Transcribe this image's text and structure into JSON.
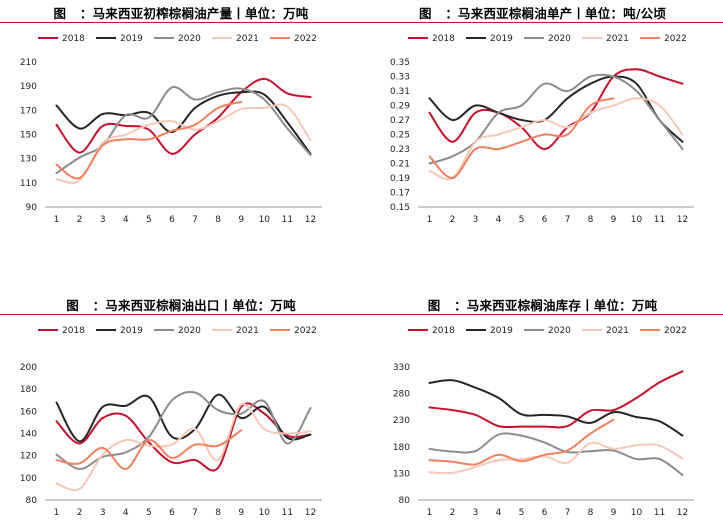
{
  "chart_data": [
    {
      "type": "line",
      "title": "图   ：马来西亚初榨棕榈油产量丨单位：万吨",
      "categories": [
        "1",
        "2",
        "3",
        "4",
        "5",
        "6",
        "7",
        "8",
        "9",
        "10",
        "11",
        "12"
      ],
      "ylim": [
        90,
        210
      ],
      "yticks": [
        90,
        110,
        130,
        150,
        170,
        190,
        210
      ],
      "grid": false,
      "legend_position": "top",
      "series": [
        {
          "name": "2018",
          "color": "#c8102e",
          "values": [
            158,
            135,
            157,
            157,
            154,
            134,
            150,
            164,
            185,
            196,
            184,
            181
          ]
        },
        {
          "name": "2019",
          "color": "#262626",
          "values": [
            174,
            155,
            167,
            166,
            168,
            152,
            172,
            182,
            185,
            183,
            160,
            134
          ]
        },
        {
          "name": "2020",
          "color": "#8c8c8c",
          "values": [
            118,
            131,
            141,
            166,
            164,
            189,
            179,
            185,
            188,
            179,
            155,
            133
          ]
        },
        {
          "name": "2021",
          "color": "#f7c8b7",
          "values": [
            113,
            112,
            143,
            150,
            158,
            161,
            154,
            161,
            171,
            172,
            173,
            145
          ]
        },
        {
          "name": "2022",
          "color": "#f0805e",
          "values": [
            125,
            114,
            141,
            146,
            146,
            153,
            158,
            172,
            177,
            null,
            null,
            null
          ]
        }
      ]
    },
    {
      "type": "line",
      "title": "图   ：马来西亚棕榈油单产丨单位：吨/公顷",
      "categories": [
        "1",
        "2",
        "3",
        "4",
        "5",
        "6",
        "7",
        "8",
        "9",
        "10",
        "11",
        "12"
      ],
      "ylim": [
        0.15,
        0.35
      ],
      "yticks": [
        0.15,
        0.17,
        0.19,
        0.21,
        0.23,
        0.25,
        0.27,
        0.29,
        0.31,
        0.33,
        0.35
      ],
      "grid": false,
      "legend_position": "top",
      "series": [
        {
          "name": "2018",
          "color": "#c8102e",
          "values": [
            0.28,
            0.24,
            0.28,
            0.28,
            0.26,
            0.23,
            0.26,
            0.28,
            0.33,
            0.34,
            0.33,
            0.32
          ]
        },
        {
          "name": "2019",
          "color": "#262626",
          "values": [
            0.3,
            0.27,
            0.29,
            0.28,
            0.27,
            0.27,
            0.3,
            0.32,
            0.33,
            0.32,
            0.27,
            0.24
          ]
        },
        {
          "name": "2020",
          "color": "#8c8c8c",
          "values": [
            0.21,
            0.22,
            0.24,
            0.28,
            0.29,
            0.32,
            0.31,
            0.33,
            0.33,
            0.31,
            0.27,
            0.23
          ]
        },
        {
          "name": "2021",
          "color": "#f7c8b7",
          "values": [
            0.2,
            0.19,
            0.24,
            0.25,
            0.26,
            0.27,
            0.26,
            0.28,
            0.29,
            0.3,
            0.29,
            0.25
          ]
        },
        {
          "name": "2022",
          "color": "#f0805e",
          "values": [
            0.22,
            0.19,
            0.23,
            0.23,
            0.24,
            0.25,
            0.25,
            0.29,
            0.3,
            null,
            null,
            null
          ]
        }
      ]
    },
    {
      "type": "line",
      "title": "图   ：马来西亚棕榈油出口丨单位：万吨",
      "categories": [
        "1",
        "2",
        "3",
        "4",
        "5",
        "6",
        "7",
        "8",
        "9",
        "10",
        "11",
        "12"
      ],
      "ylim": [
        80,
        200
      ],
      "yticks": [
        80,
        100,
        120,
        140,
        160,
        180,
        200
      ],
      "grid": false,
      "legend_position": "top",
      "series": [
        {
          "name": "2018",
          "color": "#c8102e",
          "values": [
            151,
            131,
            154,
            156,
            132,
            114,
            116,
            109,
            164,
            158,
            138,
            139
          ]
        },
        {
          "name": "2019",
          "color": "#262626",
          "values": [
            168,
            133,
            164,
            165,
            173,
            137,
            144,
            175,
            154,
            164,
            136,
            139
          ]
        },
        {
          "name": "2020",
          "color": "#8c8c8c",
          "values": [
            121,
            108,
            119,
            123,
            137,
            170,
            177,
            161,
            158,
            169,
            131,
            163
          ]
        },
        {
          "name": "2021",
          "color": "#f7c8b7",
          "values": [
            95,
            90,
            121,
            134,
            129,
            130,
            144,
            116,
            166,
            144,
            140,
            142
          ]
        },
        {
          "name": "2022",
          "color": "#f0805e",
          "values": [
            116,
            113,
            127,
            108,
            134,
            118,
            130,
            129,
            143,
            null,
            null,
            null
          ]
        }
      ]
    },
    {
      "type": "line",
      "title": "图   ：马来西亚棕榈油库存丨单位：万吨",
      "categories": [
        "1",
        "2",
        "3",
        "4",
        "5",
        "6",
        "7",
        "8",
        "9",
        "10",
        "11",
        "12"
      ],
      "ylim": [
        80,
        330
      ],
      "yticks": [
        80,
        130,
        180,
        230,
        280,
        330
      ],
      "grid": false,
      "legend_position": "top",
      "series": [
        {
          "name": "2018",
          "color": "#c8102e",
          "values": [
            254,
            249,
            240,
            219,
            218,
            218,
            219,
            248,
            249,
            272,
            301,
            322
          ]
        },
        {
          "name": "2019",
          "color": "#262626",
          "values": [
            300,
            305,
            291,
            272,
            241,
            240,
            237,
            225,
            245,
            236,
            228,
            201
          ]
        },
        {
          "name": "2020",
          "color": "#8c8c8c",
          "values": [
            176,
            171,
            172,
            203,
            201,
            188,
            170,
            172,
            173,
            157,
            157,
            127
          ]
        },
        {
          "name": "2021",
          "color": "#f7c8b7",
          "values": [
            132,
            131,
            142,
            155,
            157,
            162,
            150,
            187,
            176,
            183,
            182,
            158
          ]
        },
        {
          "name": "2022",
          "color": "#f0805e",
          "values": [
            155,
            152,
            147,
            165,
            153,
            165,
            173,
            205,
            231,
            null,
            null,
            null
          ]
        }
      ]
    }
  ]
}
